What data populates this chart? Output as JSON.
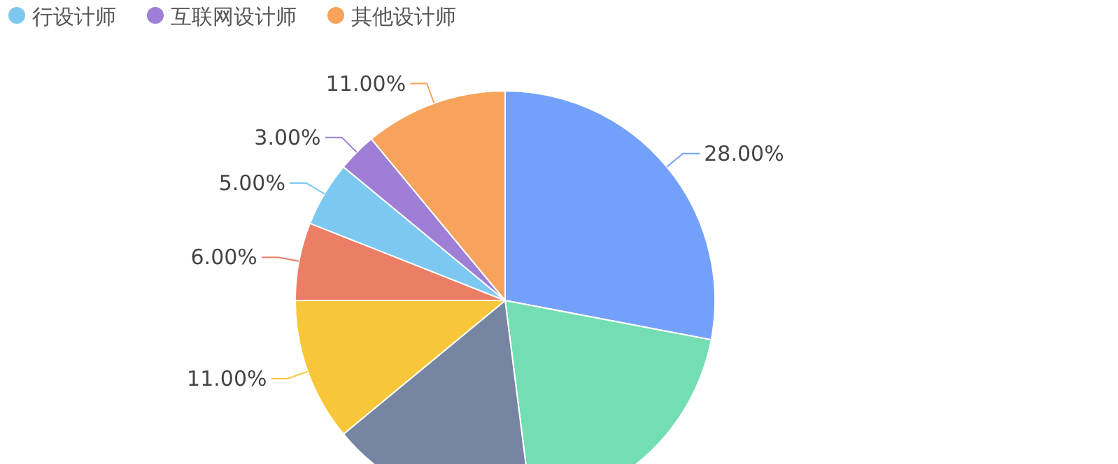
{
  "chart_data": {
    "type": "pie",
    "categories": [
      null,
      null,
      null,
      null,
      null,
      "行设计师",
      "互联网设计师",
      "其他设计师"
    ],
    "values": [
      28,
      20,
      16,
      11,
      6,
      5,
      3,
      11
    ],
    "colors": [
      "#73a0fa",
      "#73deb3",
      "#7585a2",
      "#f7c739",
      "#eb7e65",
      "#7cc8f0",
      "#9e7fd5",
      "#f7a35c"
    ],
    "value_labels": [
      "28.00%",
      null,
      null,
      "11.00%",
      "6.00%",
      "5.00%",
      "3.00%",
      "11.00%"
    ],
    "legend": "top left"
  }
}
